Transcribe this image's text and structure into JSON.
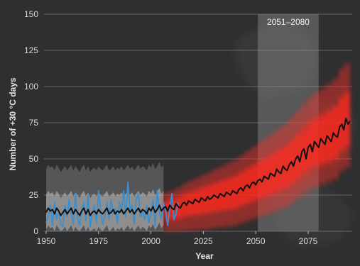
{
  "chart_data": {
    "type": "line",
    "title": "",
    "xlabel": "Year",
    "ylabel": "Number of +30 °C days",
    "xlim": [
      1949,
      2096
    ],
    "ylim": [
      0,
      150
    ],
    "x_ticks": [
      1950,
      1975,
      2000,
      2025,
      2050,
      2075
    ],
    "y_ticks": [
      0,
      25,
      50,
      75,
      100,
      125,
      150
    ],
    "grid": true,
    "highlight_period": {
      "label": "2051–2080",
      "start": 2051,
      "end": 2080
    },
    "colors": {
      "background": "#2e2f31",
      "grid": "#7a7a7a",
      "historical_band": "#bdbdbd",
      "projection_band": "#ff2a1f",
      "observed": "#3a8fd0",
      "mean": "#111111",
      "period_shade": "#9a9a9a"
    },
    "series": [
      {
        "role": "observed",
        "x": [
          1950,
          1951,
          1952,
          1953,
          1954,
          1955,
          1956,
          1957,
          1958,
          1959,
          1960,
          1961,
          1962,
          1963,
          1964,
          1965,
          1966,
          1967,
          1968,
          1969,
          1970,
          1971,
          1972,
          1973,
          1974,
          1975,
          1976,
          1977,
          1978,
          1979,
          1980,
          1981,
          1982,
          1983,
          1984,
          1985,
          1986,
          1987,
          1988,
          1989,
          1990,
          1991,
          1992,
          1993,
          1994,
          1995,
          1996,
          1997,
          1998,
          1999,
          2000,
          2001,
          2002,
          2003,
          2004,
          2005,
          2006,
          2007,
          2008,
          2009,
          2010,
          2011,
          2012,
          2013
        ],
        "values": [
          6,
          10,
          18,
          4,
          20,
          8,
          14,
          5,
          3,
          18,
          10,
          22,
          12,
          5,
          26,
          9,
          4,
          15,
          20,
          7,
          25,
          3,
          13,
          18,
          6,
          28,
          14,
          5,
          10,
          20,
          8,
          22,
          12,
          16,
          6,
          20,
          14,
          28,
          10,
          34,
          15,
          18,
          5,
          22,
          26,
          10,
          14,
          8,
          18,
          6,
          12,
          22,
          4,
          28,
          14,
          8,
          20,
          14,
          4,
          16,
          26,
          8,
          12,
          20
        ]
      },
      {
        "role": "mean",
        "x": [
          1950,
          1951,
          1952,
          1953,
          1954,
          1955,
          1956,
          1957,
          1958,
          1959,
          1960,
          1961,
          1962,
          1963,
          1964,
          1965,
          1966,
          1967,
          1968,
          1969,
          1970,
          1971,
          1972,
          1973,
          1974,
          1975,
          1976,
          1977,
          1978,
          1979,
          1980,
          1981,
          1982,
          1983,
          1984,
          1985,
          1986,
          1987,
          1988,
          1989,
          1990,
          1991,
          1992,
          1993,
          1994,
          1995,
          1996,
          1997,
          1998,
          1999,
          2000,
          2001,
          2002,
          2003,
          2004,
          2005,
          2006,
          2007,
          2008,
          2009,
          2010,
          2011,
          2012,
          2013,
          2014,
          2015,
          2016,
          2017,
          2018,
          2019,
          2020,
          2021,
          2022,
          2023,
          2024,
          2025,
          2026,
          2027,
          2028,
          2029,
          2030,
          2031,
          2032,
          2033,
          2034,
          2035,
          2036,
          2037,
          2038,
          2039,
          2040,
          2041,
          2042,
          2043,
          2044,
          2045,
          2046,
          2047,
          2048,
          2049,
          2050,
          2051,
          2052,
          2053,
          2054,
          2055,
          2056,
          2057,
          2058,
          2059,
          2060,
          2061,
          2062,
          2063,
          2064,
          2065,
          2066,
          2067,
          2068,
          2069,
          2070,
          2071,
          2072,
          2073,
          2074,
          2075,
          2076,
          2077,
          2078,
          2079,
          2080,
          2081,
          2082,
          2083,
          2084,
          2085,
          2086,
          2087,
          2088,
          2089,
          2090,
          2091,
          2092,
          2093,
          2094,
          2095
        ],
        "values": [
          13,
          16,
          14,
          15,
          12,
          16,
          14,
          11,
          13,
          15,
          12,
          14,
          16,
          12,
          15,
          13,
          11,
          14,
          16,
          12,
          15,
          11,
          13,
          14,
          12,
          15,
          13,
          12,
          14,
          16,
          12,
          13,
          15,
          12,
          14,
          13,
          15,
          12,
          14,
          16,
          13,
          15,
          12,
          14,
          16,
          13,
          15,
          14,
          12,
          16,
          14,
          17,
          13,
          15,
          18,
          14,
          16,
          17,
          14,
          18,
          16,
          15,
          19,
          17,
          16,
          19,
          20,
          18,
          21,
          20,
          19,
          22,
          21,
          20,
          23,
          22,
          21,
          24,
          22,
          23,
          25,
          24,
          23,
          26,
          25,
          24,
          27,
          26,
          25,
          28,
          27,
          26,
          29,
          30,
          28,
          31,
          32,
          30,
          33,
          34,
          32,
          35,
          36,
          34,
          38,
          37,
          36,
          40,
          39,
          38,
          43,
          41,
          40,
          45,
          43,
          42,
          46,
          48,
          45,
          50,
          52,
          48,
          55,
          57,
          50,
          58,
          60,
          55,
          62,
          60,
          58,
          64,
          62,
          60,
          66,
          64,
          62,
          68,
          66,
          65,
          72,
          74,
          70,
          78,
          74,
          76
        ]
      }
    ]
  }
}
